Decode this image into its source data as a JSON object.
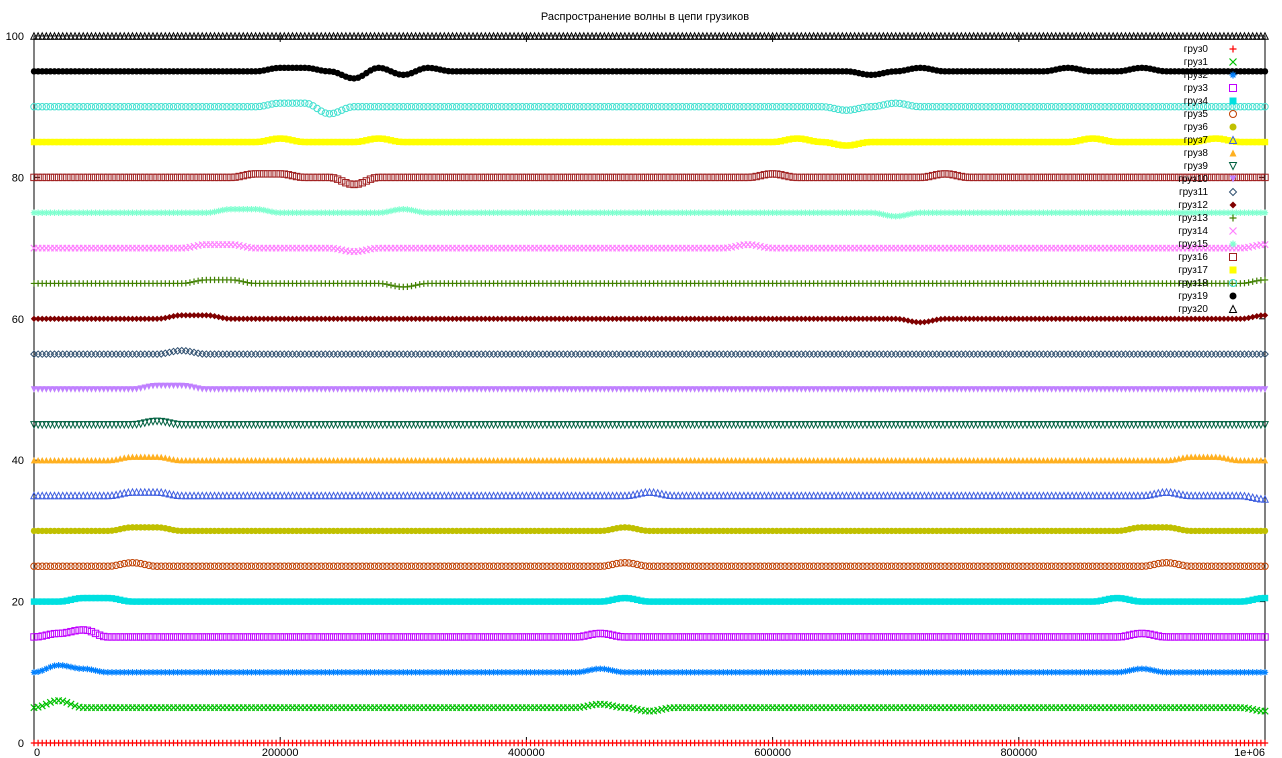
{
  "chart_data": {
    "type": "scatter",
    "title": "Распространение волны в цепи грузиков",
    "xlabel": "",
    "ylabel": "",
    "xlim": [
      0,
      1000000
    ],
    "ylim": [
      0,
      100
    ],
    "x_ticks": [
      {
        "value": 0,
        "label": "0"
      },
      {
        "value": 200000,
        "label": "200000"
      },
      {
        "value": 400000,
        "label": "400000"
      },
      {
        "value": 600000,
        "label": "600000"
      },
      {
        "value": 800000,
        "label": "800000"
      },
      {
        "value": 1000000,
        "label": "1e+06"
      }
    ],
    "y_ticks": [
      {
        "value": 0,
        "label": "0"
      },
      {
        "value": 20,
        "label": "20"
      },
      {
        "value": 40,
        "label": "40"
      },
      {
        "value": 60,
        "label": "60"
      },
      {
        "value": 80,
        "label": "80"
      },
      {
        "value": 100,
        "label": "100"
      }
    ],
    "grid": false,
    "legend_position": "top-right",
    "x": [
      0,
      20000,
      40000,
      60000,
      80000,
      100000,
      120000,
      140000,
      160000,
      180000,
      200000,
      220000,
      240000,
      260000,
      280000,
      300000,
      320000,
      340000,
      360000,
      380000,
      400000,
      420000,
      440000,
      460000,
      480000,
      500000,
      520000,
      540000,
      560000,
      580000,
      600000,
      620000,
      640000,
      660000,
      680000,
      700000,
      720000,
      740000,
      760000,
      780000,
      800000,
      820000,
      840000,
      860000,
      880000,
      900000,
      920000,
      940000,
      960000,
      980000,
      1000000
    ],
    "series": [
      {
        "name": "груз0",
        "color": "#ff0000",
        "marker": "plus",
        "values": [
          0,
          0,
          0,
          0,
          0,
          0,
          0,
          0,
          0,
          0,
          0,
          0,
          0,
          0,
          0,
          0,
          0,
          0,
          0,
          0,
          0,
          0,
          0,
          0,
          0,
          0,
          0,
          0,
          0,
          0,
          0,
          0,
          0,
          0,
          0,
          0,
          0,
          0,
          0,
          0,
          0,
          0,
          0,
          0,
          0,
          0,
          0,
          0,
          0,
          0,
          0
        ]
      },
      {
        "name": "груз1",
        "color": "#00c000",
        "marker": "cross",
        "values": [
          5,
          6,
          5,
          5,
          5,
          5,
          5,
          5,
          5,
          5,
          5,
          5,
          5,
          5,
          5,
          5,
          5,
          5,
          5,
          5,
          5,
          5,
          5,
          5.5,
          5,
          4.5,
          5,
          5,
          5,
          5,
          5,
          5,
          5,
          5,
          5,
          5,
          5,
          5,
          5,
          5,
          5,
          5,
          5,
          5,
          5,
          5,
          5,
          5,
          5,
          5,
          4.5
        ]
      },
      {
        "name": "груз2",
        "color": "#0080ff",
        "marker": "star",
        "values": [
          10,
          11,
          10.5,
          10,
          10,
          10,
          10,
          10,
          10,
          10,
          10,
          10,
          10,
          10,
          10,
          10,
          10,
          10,
          10,
          10,
          10,
          10,
          10,
          10.5,
          10,
          10,
          10,
          10,
          10,
          10,
          10,
          10,
          10,
          10,
          10,
          10,
          10,
          10,
          10,
          10,
          10,
          10,
          10,
          10,
          10,
          10.5,
          10,
          10,
          10,
          10,
          10
        ]
      },
      {
        "name": "груз3",
        "color": "#c000ff",
        "marker": "square",
        "values": [
          15,
          15.5,
          16,
          15,
          15,
          15,
          15,
          15,
          15,
          15,
          15,
          15,
          15,
          15,
          15,
          15,
          15,
          15,
          15,
          15,
          15,
          15,
          15,
          15.5,
          15,
          15,
          15,
          15,
          15,
          15,
          15,
          15,
          15,
          15,
          15,
          15,
          15,
          15,
          15,
          15,
          15,
          15,
          15,
          15,
          15,
          15.5,
          15,
          15,
          15,
          15,
          15
        ]
      },
      {
        "name": "груз4",
        "color": "#00e0e0",
        "marker": "filled-square",
        "values": [
          20,
          20,
          20.5,
          20.5,
          20,
          20,
          20,
          20,
          20,
          20,
          20,
          20,
          20,
          20,
          20,
          20,
          20,
          20,
          20,
          20,
          20,
          20,
          20,
          20,
          20.5,
          20,
          20,
          20,
          20,
          20,
          20,
          20,
          20,
          20,
          20,
          20,
          20,
          20,
          20,
          20,
          20,
          20,
          20,
          20,
          20.5,
          20,
          20,
          20,
          20,
          20,
          20.5
        ]
      },
      {
        "name": "груз5",
        "color": "#c04000",
        "marker": "circle",
        "values": [
          25,
          25,
          25,
          25,
          25.5,
          25,
          25,
          25,
          25,
          25,
          25,
          25,
          25,
          25,
          25,
          25,
          25,
          25,
          25,
          25,
          25,
          25,
          25,
          25,
          25.5,
          25,
          25,
          25,
          25,
          25,
          25,
          25,
          25,
          25,
          25,
          25,
          25,
          25,
          25,
          25,
          25,
          25,
          25,
          25,
          25,
          25,
          25.5,
          25,
          25,
          25,
          25
        ]
      },
      {
        "name": "груз6",
        "color": "#c0c000",
        "marker": "filled-circle",
        "values": [
          30,
          30,
          30,
          30,
          30.5,
          30.5,
          30,
          30,
          30,
          30,
          30,
          30,
          30,
          30,
          30,
          30,
          30,
          30,
          30,
          30,
          30,
          30,
          30,
          30,
          30.5,
          30,
          30,
          30,
          30,
          30,
          30,
          30,
          30,
          30,
          30,
          30,
          30,
          30,
          30,
          30,
          30,
          30,
          30,
          30,
          30,
          30.5,
          30.5,
          30,
          30,
          30,
          30
        ]
      },
      {
        "name": "груз7",
        "color": "#4060e0",
        "marker": "triangle",
        "values": [
          35,
          35,
          35,
          35,
          35.5,
          35.5,
          35,
          35,
          35,
          35,
          35,
          35,
          35,
          35,
          35,
          35,
          35,
          35,
          35,
          35,
          35,
          35,
          35,
          35,
          35,
          35.5,
          35,
          35,
          35,
          35,
          35,
          35,
          35,
          35,
          35,
          35,
          35,
          35,
          35,
          35,
          35,
          35,
          35,
          35,
          35,
          35,
          35.5,
          35,
          35,
          35,
          34.5
        ]
      },
      {
        "name": "груз8",
        "color": "#ffb020",
        "marker": "filled-triangle",
        "values": [
          40,
          40,
          40,
          40,
          40.5,
          40.5,
          40,
          40,
          40,
          40,
          40,
          40,
          40,
          40,
          40,
          40,
          40,
          40,
          40,
          40,
          40,
          40,
          40,
          40,
          40,
          40,
          40,
          40,
          40,
          40,
          40,
          40,
          40,
          40,
          40,
          40,
          40,
          40,
          40,
          40,
          40,
          40,
          40,
          40,
          40,
          40,
          40,
          40.5,
          40.5,
          40,
          40
        ]
      },
      {
        "name": "груз9",
        "color": "#006040",
        "marker": "inv-triangle",
        "values": [
          45,
          45,
          45,
          45,
          45,
          45.5,
          45,
          45,
          45,
          45,
          45,
          45,
          45,
          45,
          45,
          45,
          45,
          45,
          45,
          45,
          45,
          45,
          45,
          45,
          45,
          45,
          45,
          45,
          45,
          45,
          45,
          45,
          45,
          45,
          45,
          45,
          45,
          45,
          45,
          45,
          45,
          45,
          45,
          45,
          45,
          45,
          45,
          45,
          45,
          45,
          45
        ]
      },
      {
        "name": "груз10",
        "color": "#c080ff",
        "marker": "filled-inv-triangle",
        "values": [
          50,
          50,
          50,
          50,
          50,
          50.5,
          50.5,
          50,
          50,
          50,
          50,
          50,
          50,
          50,
          50,
          50,
          50,
          50,
          50,
          50,
          50,
          50,
          50,
          50,
          50,
          50,
          50,
          50,
          50,
          50,
          50,
          50,
          50,
          50,
          50,
          50,
          50,
          50,
          50,
          50,
          50,
          50,
          50,
          50,
          50,
          50,
          50,
          50,
          50,
          50,
          50
        ]
      },
      {
        "name": "груз11",
        "color": "#305070",
        "marker": "diamond",
        "values": [
          55,
          55,
          55,
          55,
          55,
          55,
          55.5,
          55,
          55,
          55,
          55,
          55,
          55,
          55,
          55,
          55,
          55,
          55,
          55,
          55,
          55,
          55,
          55,
          55,
          55,
          55,
          55,
          55,
          55,
          55,
          55,
          55,
          55,
          55,
          55,
          55,
          55,
          55,
          55,
          55,
          55,
          55,
          55,
          55,
          55,
          55,
          55,
          55,
          55,
          55,
          55
        ]
      },
      {
        "name": "груз12",
        "color": "#800000",
        "marker": "filled-diamond",
        "values": [
          60,
          60,
          60,
          60,
          60,
          60,
          60.5,
          60.5,
          60,
          60,
          60,
          60,
          60,
          60,
          60,
          60,
          60,
          60,
          60,
          60,
          60,
          60,
          60,
          60,
          60,
          60,
          60,
          60,
          60,
          60,
          60,
          60,
          60,
          60,
          60,
          60,
          59.5,
          60,
          60,
          60,
          60,
          60,
          60,
          60,
          60,
          60,
          60,
          60,
          60,
          60,
          60.5
        ]
      },
      {
        "name": "груз13",
        "color": "#408000",
        "marker": "plus",
        "values": [
          65,
          65,
          65,
          65,
          65,
          65,
          65,
          65.5,
          65.5,
          65,
          65,
          65,
          65,
          65,
          65,
          64.5,
          65,
          65,
          65,
          65,
          65,
          65,
          65,
          65,
          65,
          65,
          65,
          65,
          65,
          65,
          65,
          65,
          65,
          65,
          65,
          65,
          65,
          65,
          65,
          65,
          65,
          65,
          65,
          65,
          65,
          65,
          65,
          65,
          65,
          65,
          65.5
        ]
      },
      {
        "name": "груз14",
        "color": "#ff80ff",
        "marker": "cross",
        "values": [
          70,
          70,
          70,
          70,
          70,
          70,
          70,
          70.5,
          70.5,
          70,
          70,
          70,
          70,
          69.5,
          70,
          70,
          70,
          70,
          70,
          70,
          70,
          70,
          70,
          70,
          70,
          70,
          70,
          70,
          70,
          70.5,
          70,
          70,
          70,
          70,
          70,
          70,
          70,
          70,
          70,
          70,
          70,
          70,
          70,
          70,
          70,
          70,
          70,
          70,
          70,
          70,
          70.5
        ]
      },
      {
        "name": "груз15",
        "color": "#80ffd0",
        "marker": "star",
        "values": [
          75,
          75,
          75,
          75,
          75,
          75,
          75,
          75,
          75.5,
          75.5,
          75,
          75,
          75,
          75,
          75,
          75.5,
          75,
          75,
          75,
          75,
          75,
          75,
          75,
          75,
          75,
          75,
          75,
          75,
          75,
          75,
          75,
          75,
          75,
          75,
          75,
          74.5,
          75,
          75,
          75,
          75,
          75,
          75,
          75,
          75,
          75,
          75,
          75,
          75,
          75,
          75,
          75
        ]
      },
      {
        "name": "груз16",
        "color": "#a02020",
        "marker": "square",
        "values": [
          80,
          80,
          80,
          80,
          80,
          80,
          80,
          80,
          80,
          80.5,
          80.5,
          80,
          80,
          79,
          80,
          80,
          80,
          80,
          80,
          80,
          80,
          80,
          80,
          80,
          80,
          80,
          80,
          80,
          80,
          80,
          80.5,
          80,
          80,
          80,
          80,
          80,
          80,
          80.5,
          80,
          80,
          80,
          80,
          80,
          80,
          80,
          80,
          80,
          80,
          80,
          80,
          80
        ]
      },
      {
        "name": "груз17",
        "color": "#ffff00",
        "marker": "filled-square",
        "values": [
          85,
          85,
          85,
          85,
          85,
          85,
          85,
          85,
          85,
          85,
          85.5,
          85,
          85,
          85,
          85.5,
          85,
          85,
          85,
          85,
          85,
          85,
          85,
          85,
          85,
          85,
          85,
          85,
          85,
          85,
          85,
          85,
          85.5,
          85,
          84.5,
          85,
          85,
          85,
          85,
          85,
          85,
          85,
          85,
          85,
          85.5,
          85,
          85,
          85,
          85,
          85.5,
          85,
          85
        ]
      },
      {
        "name": "груз18",
        "color": "#40e0d0",
        "marker": "circle",
        "values": [
          90,
          90,
          90,
          90,
          90,
          90,
          90,
          90,
          90,
          90,
          90.5,
          90.5,
          89,
          90,
          90,
          90,
          90,
          90,
          90,
          90,
          90,
          90,
          90,
          90,
          90,
          90,
          90,
          90,
          90,
          90,
          90,
          90,
          90,
          89.5,
          90,
          90.5,
          90,
          90,
          90,
          90,
          90,
          90,
          90,
          90,
          90,
          90,
          90,
          90,
          90,
          90,
          90
        ]
      },
      {
        "name": "груз19",
        "color": "#000000",
        "marker": "filled-circle",
        "values": [
          95,
          95,
          95,
          95,
          95,
          95,
          95,
          95,
          95,
          95,
          95.5,
          95.5,
          95,
          94,
          95.5,
          94.5,
          95.5,
          95,
          95,
          95,
          95,
          95,
          95,
          95,
          95,
          95,
          95,
          95,
          95,
          95,
          95,
          95,
          95,
          95,
          94.5,
          95,
          95.5,
          95,
          95,
          95,
          95,
          95,
          95.5,
          95,
          95,
          95.5,
          95,
          95,
          95,
          95,
          95
        ]
      },
      {
        "name": "груз20",
        "color": "#000000",
        "marker": "triangle",
        "values": [
          100,
          100,
          100,
          100,
          100,
          100,
          100,
          100,
          100,
          100,
          100,
          100,
          100,
          100,
          100,
          100,
          100,
          100,
          100,
          100,
          100,
          100,
          100,
          100,
          100,
          100,
          100,
          100,
          100,
          100,
          100,
          100,
          100,
          100,
          100,
          100,
          100,
          100,
          100,
          100,
          100,
          100,
          100,
          100,
          100,
          100,
          100,
          100,
          100,
          100,
          100
        ]
      }
    ]
  }
}
